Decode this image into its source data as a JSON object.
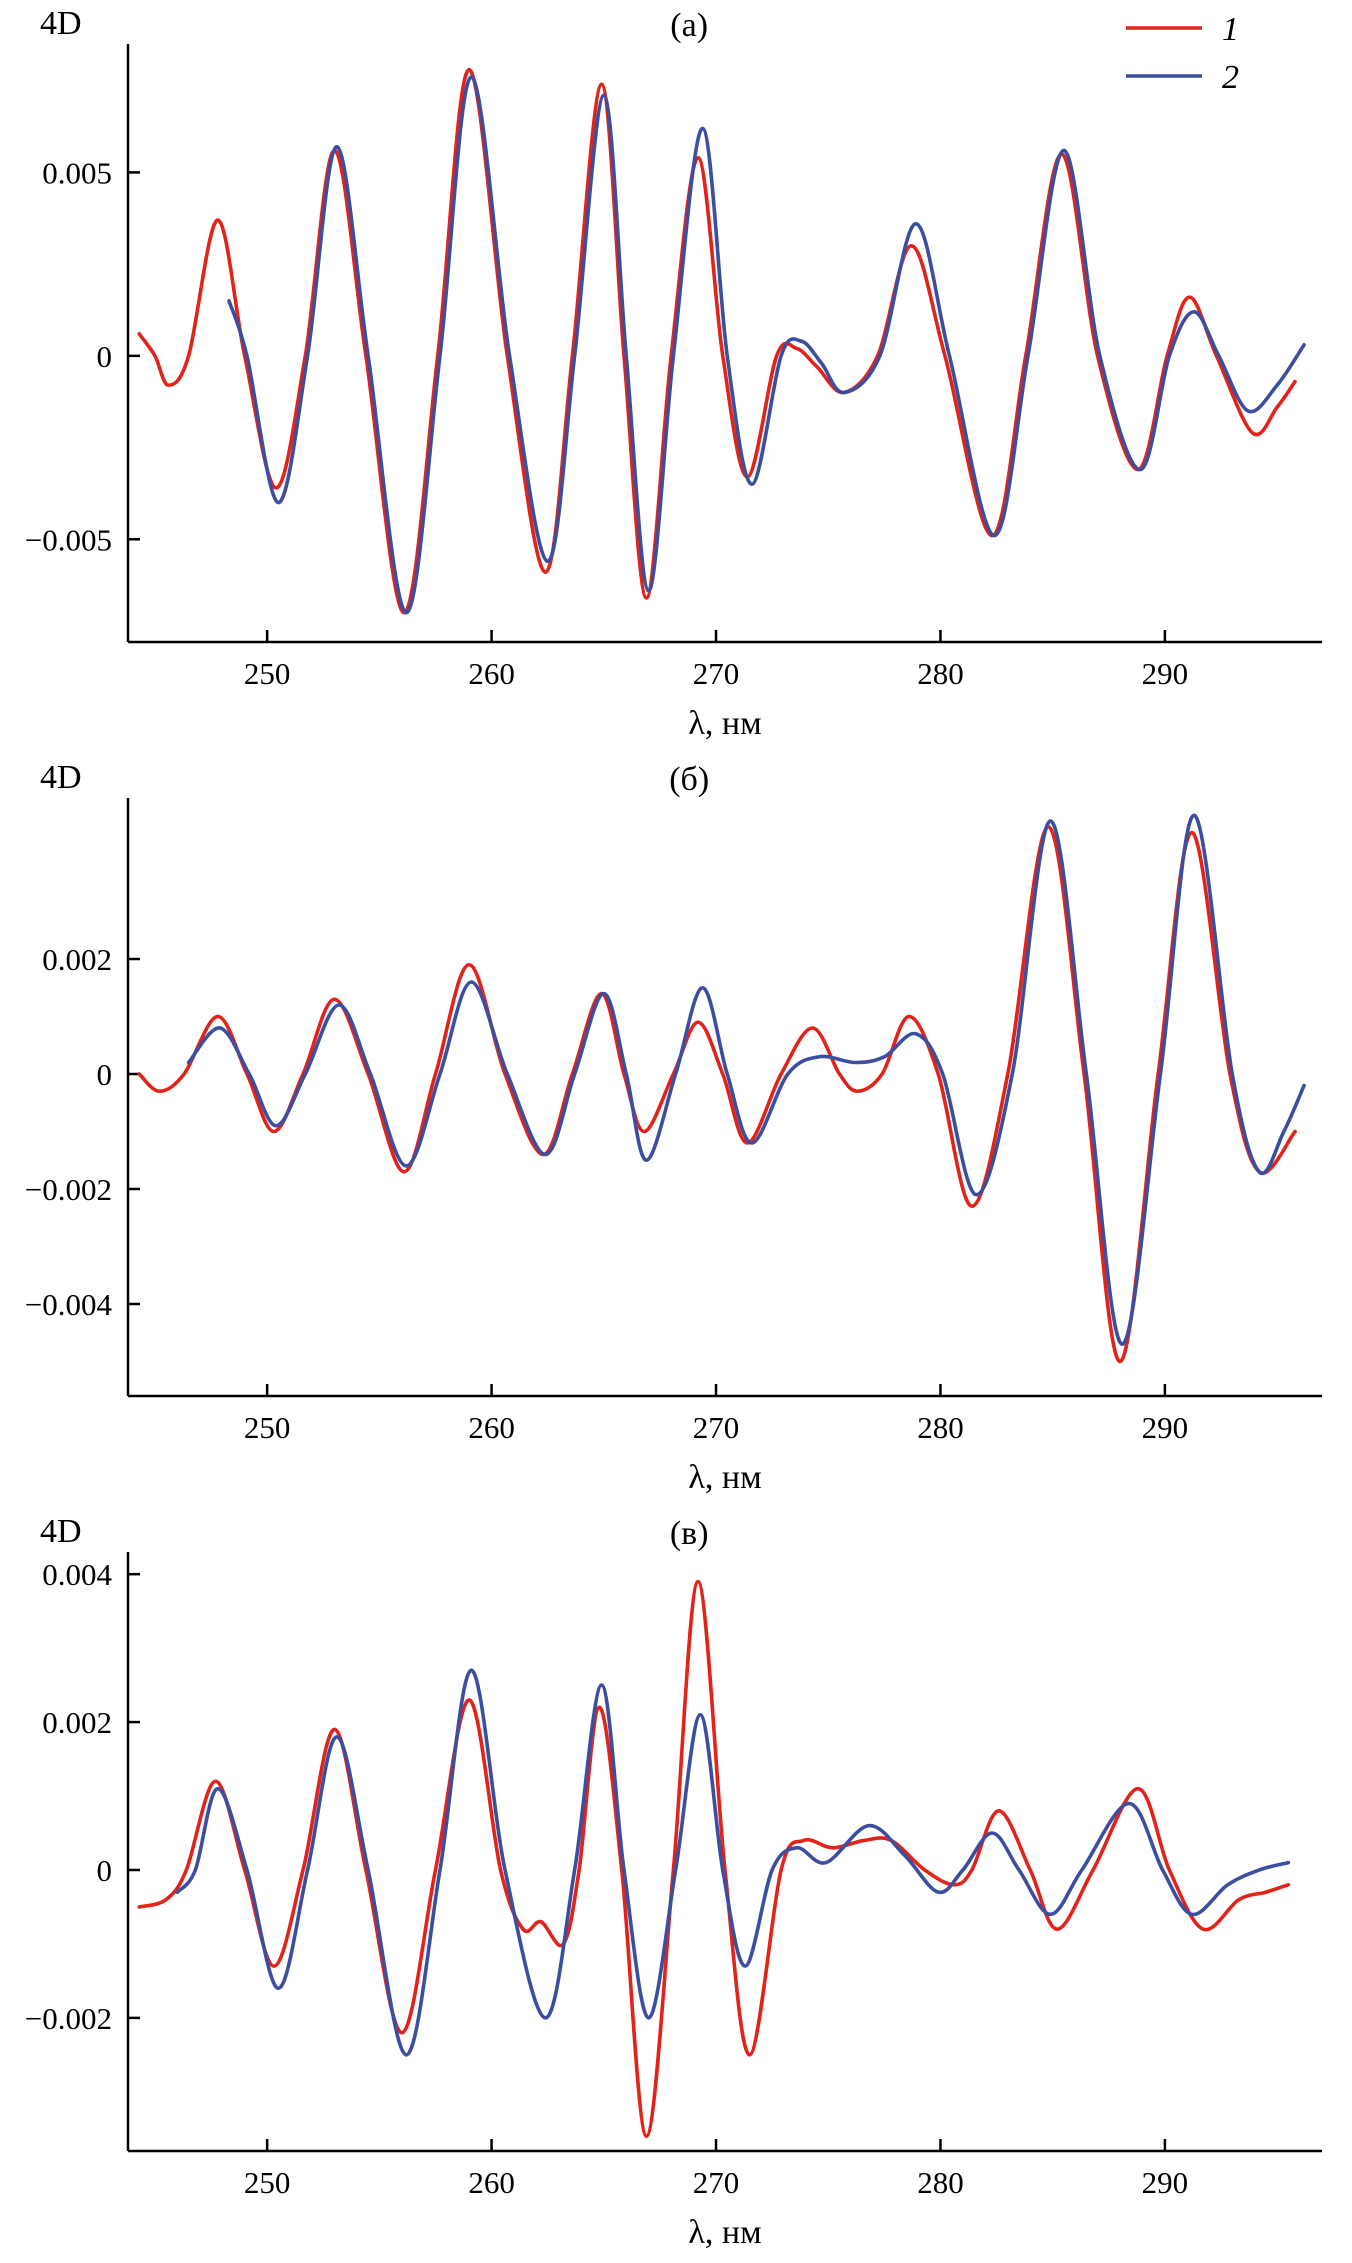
{
  "figure": {
    "background": "#ffffff",
    "axis_color": "#000000",
    "series_colors": {
      "series1": "#e2231a",
      "series2": "#3b4ea0"
    }
  },
  "chart_data": [
    {
      "type": "line",
      "panel_label": "(а)",
      "ylabel": "4D",
      "xlabel": "λ, нм",
      "xlim": [
        243.8,
        297
      ],
      "ylim": [
        -0.0078,
        0.0085
      ],
      "x_ticks": [
        250,
        260,
        270,
        280,
        290
      ],
      "y_ticks": [
        {
          "v": 0.005,
          "label": "0.005"
        },
        {
          "v": 0,
          "label": "0"
        },
        {
          "v": -0.005,
          "label": "−0.005"
        }
      ],
      "grid": false,
      "legend": {
        "show": true,
        "position": "top-right"
      },
      "series": [
        {
          "name": "1",
          "color": "#e2231a",
          "points": [
            [
              244.3,
              0.0006
            ],
            [
              245.0,
              0.0
            ],
            [
              245.6,
              -0.0008
            ],
            [
              246.5,
              0.0
            ],
            [
              247.8,
              0.0037
            ],
            [
              249.0,
              0.0
            ],
            [
              250.4,
              -0.0036
            ],
            [
              251.7,
              0.0
            ],
            [
              253.0,
              0.0056
            ],
            [
              254.4,
              0.0
            ],
            [
              256.1,
              -0.007
            ],
            [
              257.6,
              0.0
            ],
            [
              259.0,
              0.0078
            ],
            [
              260.7,
              0.0
            ],
            [
              262.4,
              -0.0059
            ],
            [
              263.6,
              0.0
            ],
            [
              264.9,
              0.0074
            ],
            [
              265.9,
              0.0
            ],
            [
              266.9,
              -0.0066
            ],
            [
              268.0,
              0.0
            ],
            [
              269.2,
              0.0054
            ],
            [
              270.3,
              0.0
            ],
            [
              271.4,
              -0.0033
            ],
            [
              272.7,
              0.0
            ],
            [
              273.6,
              0.0002
            ],
            [
              274.5,
              -0.0003
            ],
            [
              275.7,
              -0.001
            ],
            [
              277.2,
              0.0
            ],
            [
              278.7,
              0.003
            ],
            [
              280.2,
              0.0
            ],
            [
              282.3,
              -0.0049
            ],
            [
              283.8,
              0.0
            ],
            [
              285.4,
              0.0055
            ],
            [
              287.0,
              0.0
            ],
            [
              288.8,
              -0.0031
            ],
            [
              290.1,
              0.0
            ],
            [
              291.1,
              0.0016
            ],
            [
              292.3,
              0.0
            ],
            [
              293.9,
              -0.0021
            ],
            [
              295.0,
              -0.0014
            ],
            [
              295.8,
              -0.0007
            ]
          ]
        },
        {
          "name": "2",
          "color": "#3b4ea0",
          "points": [
            [
              248.3,
              0.0015
            ],
            [
              249.1,
              0.0
            ],
            [
              250.5,
              -0.004
            ],
            [
              251.8,
              0.0
            ],
            [
              253.1,
              0.0057
            ],
            [
              254.5,
              0.0
            ],
            [
              256.2,
              -0.007
            ],
            [
              257.7,
              0.0
            ],
            [
              259.1,
              0.0076
            ],
            [
              260.8,
              0.0
            ],
            [
              262.5,
              -0.0056
            ],
            [
              263.7,
              0.0
            ],
            [
              265.0,
              0.0071
            ],
            [
              266.0,
              0.0
            ],
            [
              267.0,
              -0.0064
            ],
            [
              268.1,
              0.0
            ],
            [
              269.4,
              0.0062
            ],
            [
              270.5,
              0.0
            ],
            [
              271.6,
              -0.0035
            ],
            [
              272.9,
              0.0
            ],
            [
              273.8,
              0.0004
            ],
            [
              274.7,
              -0.0002
            ],
            [
              275.7,
              -0.001
            ],
            [
              277.3,
              0.0
            ],
            [
              278.9,
              0.0036
            ],
            [
              280.4,
              0.0
            ],
            [
              282.4,
              -0.0049
            ],
            [
              283.9,
              0.0
            ],
            [
              285.5,
              0.0056
            ],
            [
              287.1,
              0.0
            ],
            [
              288.9,
              -0.0031
            ],
            [
              290.2,
              0.0
            ],
            [
              291.3,
              0.0012
            ],
            [
              292.4,
              0.0
            ],
            [
              293.7,
              -0.0015
            ],
            [
              295.0,
              -0.0008
            ],
            [
              296.2,
              0.0003
            ]
          ]
        }
      ]
    },
    {
      "type": "line",
      "panel_label": "(б)",
      "ylabel": "4D",
      "xlabel": "λ, нм",
      "xlim": [
        243.8,
        297
      ],
      "ylim": [
        -0.0056,
        0.0048
      ],
      "x_ticks": [
        250,
        260,
        270,
        280,
        290
      ],
      "y_ticks": [
        {
          "v": 0.002,
          "label": "0.002"
        },
        {
          "v": 0,
          "label": "0"
        },
        {
          "v": -0.002,
          "label": "−0.002"
        },
        {
          "v": -0.004,
          "label": "−0.004"
        }
      ],
      "grid": false,
      "legend": {
        "show": false
      },
      "series": [
        {
          "name": "1",
          "color": "#e2231a",
          "points": [
            [
              244.3,
              0.0
            ],
            [
              245.2,
              -0.0003
            ],
            [
              246.3,
              0.0
            ],
            [
              247.8,
              0.001
            ],
            [
              249.1,
              0.0
            ],
            [
              250.3,
              -0.001
            ],
            [
              251.6,
              0.0
            ],
            [
              253.0,
              0.0013
            ],
            [
              254.5,
              0.0
            ],
            [
              256.1,
              -0.0017
            ],
            [
              257.5,
              0.0
            ],
            [
              259.0,
              0.0019
            ],
            [
              260.6,
              0.0
            ],
            [
              262.3,
              -0.0014
            ],
            [
              263.6,
              0.0
            ],
            [
              264.9,
              0.0014
            ],
            [
              265.9,
              0.0
            ],
            [
              266.8,
              -0.001
            ],
            [
              268.1,
              0.0
            ],
            [
              269.2,
              0.0009
            ],
            [
              270.3,
              0.0
            ],
            [
              271.4,
              -0.0012
            ],
            [
              272.9,
              0.0
            ],
            [
              274.3,
              0.0008
            ],
            [
              275.5,
              0.0
            ],
            [
              276.3,
              -0.0003
            ],
            [
              277.4,
              0.0
            ],
            [
              278.6,
              0.001
            ],
            [
              279.9,
              0.0
            ],
            [
              281.4,
              -0.0023
            ],
            [
              283.0,
              0.0
            ],
            [
              284.8,
              0.0043
            ],
            [
              286.4,
              0.0
            ],
            [
              288.0,
              -0.005
            ],
            [
              289.7,
              0.0
            ],
            [
              291.2,
              0.0042
            ],
            [
              292.9,
              0.0
            ],
            [
              294.2,
              -0.0017
            ],
            [
              295.8,
              -0.001
            ]
          ]
        },
        {
          "name": "2",
          "color": "#3b4ea0",
          "points": [
            [
              246.5,
              0.0002
            ],
            [
              247.9,
              0.0008
            ],
            [
              249.2,
              0.0
            ],
            [
              250.4,
              -0.0009
            ],
            [
              251.7,
              0.0
            ],
            [
              253.2,
              0.0012
            ],
            [
              254.6,
              0.0
            ],
            [
              256.2,
              -0.0016
            ],
            [
              257.7,
              0.0
            ],
            [
              259.1,
              0.0016
            ],
            [
              260.7,
              0.0
            ],
            [
              262.4,
              -0.0014
            ],
            [
              263.7,
              0.0
            ],
            [
              265.0,
              0.0014
            ],
            [
              266.0,
              0.0
            ],
            [
              266.9,
              -0.0015
            ],
            [
              268.2,
              0.0
            ],
            [
              269.4,
              0.0015
            ],
            [
              270.5,
              0.0
            ],
            [
              271.6,
              -0.0012
            ],
            [
              273.2,
              0.0
            ],
            [
              274.6,
              0.0003
            ],
            [
              276.2,
              0.0002
            ],
            [
              277.5,
              0.0003
            ],
            [
              278.9,
              0.0007
            ],
            [
              280.1,
              0.0
            ],
            [
              281.6,
              -0.0021
            ],
            [
              283.2,
              0.0
            ],
            [
              284.9,
              0.0044
            ],
            [
              286.5,
              0.0
            ],
            [
              288.1,
              -0.0047
            ],
            [
              289.8,
              0.0
            ],
            [
              291.3,
              0.0045
            ],
            [
              293.0,
              0.0
            ],
            [
              294.2,
              -0.0017
            ],
            [
              295.3,
              -0.001
            ],
            [
              296.2,
              -0.0002
            ]
          ]
        }
      ]
    },
    {
      "type": "line",
      "panel_label": "(в)",
      "ylabel": "4D",
      "xlabel": "λ, нм",
      "xlim": [
        243.8,
        297
      ],
      "ylim": [
        -0.0038,
        0.0043
      ],
      "x_ticks": [
        250,
        260,
        270,
        280,
        290
      ],
      "y_ticks": [
        {
          "v": 0.004,
          "label": "0.004"
        },
        {
          "v": 0.002,
          "label": "0.002"
        },
        {
          "v": 0,
          "label": "0"
        },
        {
          "v": -0.002,
          "label": "−0.002"
        }
      ],
      "grid": false,
      "legend": {
        "show": false
      },
      "series": [
        {
          "name": "1",
          "color": "#e2231a",
          "points": [
            [
              244.3,
              -0.0005
            ],
            [
              245.5,
              -0.0004
            ],
            [
              246.4,
              0.0
            ],
            [
              247.7,
              0.0012
            ],
            [
              249.0,
              0.0
            ],
            [
              250.3,
              -0.0013
            ],
            [
              251.6,
              0.0
            ],
            [
              253.0,
              0.0019
            ],
            [
              254.4,
              0.0
            ],
            [
              256.0,
              -0.0022
            ],
            [
              257.5,
              0.0
            ],
            [
              259.0,
              0.0023
            ],
            [
              260.4,
              0.0
            ],
            [
              261.4,
              -0.0008
            ],
            [
              262.2,
              -0.0007
            ],
            [
              263.2,
              -0.001
            ],
            [
              263.9,
              0.0
            ],
            [
              264.8,
              0.0022
            ],
            [
              265.8,
              0.0
            ],
            [
              266.9,
              -0.0036
            ],
            [
              268.1,
              0.0
            ],
            [
              269.2,
              0.0039
            ],
            [
              270.4,
              0.0
            ],
            [
              271.5,
              -0.0025
            ],
            [
              272.9,
              0.0
            ],
            [
              273.9,
              0.0004
            ],
            [
              275.2,
              0.0003
            ],
            [
              276.6,
              0.0004
            ],
            [
              277.8,
              0.0004
            ],
            [
              279.3,
              0.0
            ],
            [
              280.6,
              -0.0002
            ],
            [
              281.4,
              0.0
            ],
            [
              282.6,
              0.0008
            ],
            [
              284.0,
              0.0
            ],
            [
              285.2,
              -0.0008
            ],
            [
              286.8,
              0.0
            ],
            [
              288.8,
              0.0011
            ],
            [
              290.2,
              0.0
            ],
            [
              291.7,
              -0.0008
            ],
            [
              293.3,
              -0.0004
            ],
            [
              294.5,
              -0.0003
            ],
            [
              295.5,
              -0.0002
            ]
          ]
        },
        {
          "name": "2",
          "color": "#3b4ea0",
          "points": [
            [
              246.0,
              -0.0003
            ],
            [
              246.8,
              0.0
            ],
            [
              247.8,
              0.0011
            ],
            [
              249.1,
              0.0
            ],
            [
              250.5,
              -0.0016
            ],
            [
              251.8,
              0.0
            ],
            [
              253.1,
              0.0018
            ],
            [
              254.5,
              0.0
            ],
            [
              256.2,
              -0.0025
            ],
            [
              257.7,
              0.0
            ],
            [
              259.1,
              0.0027
            ],
            [
              260.6,
              0.0
            ],
            [
              262.4,
              -0.002
            ],
            [
              263.7,
              0.0
            ],
            [
              264.9,
              0.0025
            ],
            [
              265.9,
              0.0
            ],
            [
              267.0,
              -0.002
            ],
            [
              268.2,
              0.0
            ],
            [
              269.3,
              0.0021
            ],
            [
              270.3,
              0.0
            ],
            [
              271.3,
              -0.0013
            ],
            [
              272.5,
              0.0
            ],
            [
              273.6,
              0.0003
            ],
            [
              274.9,
              0.0001
            ],
            [
              276.8,
              0.0006
            ],
            [
              278.4,
              0.0002
            ],
            [
              279.9,
              -0.0003
            ],
            [
              281.0,
              0.0
            ],
            [
              282.3,
              0.0005
            ],
            [
              283.5,
              0.0
            ],
            [
              284.9,
              -0.0006
            ],
            [
              286.3,
              0.0
            ],
            [
              288.4,
              0.0009
            ],
            [
              289.9,
              0.0
            ],
            [
              291.2,
              -0.0006
            ],
            [
              292.8,
              -0.0002
            ],
            [
              294.2,
              0.0
            ],
            [
              295.5,
              0.0001
            ]
          ]
        }
      ]
    }
  ]
}
